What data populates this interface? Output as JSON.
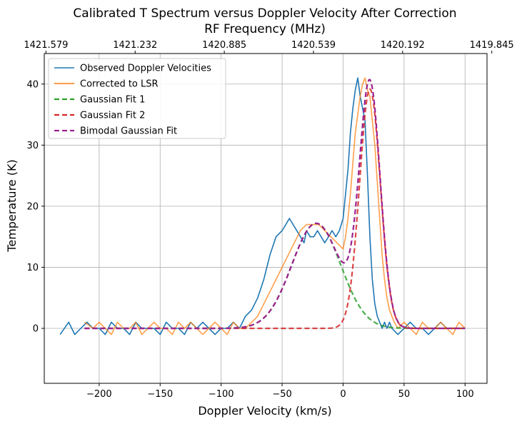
{
  "chart_data": {
    "type": "line",
    "title": "Calibrated T Spectrum versus Doppler Velocity After Correction",
    "xlabel": "Doppler Velocity (km/s)",
    "ylabel": "Temperature (K)",
    "x2label": "RF Frequency (MHz)",
    "xlim": [
      -245,
      118
    ],
    "ylim": [
      -9,
      45
    ],
    "xticks": [
      -200,
      -150,
      -100,
      -50,
      0,
      50,
      100
    ],
    "yticks": [
      0,
      10,
      20,
      30,
      40
    ],
    "x2ticks": [
      {
        "value": -243.6,
        "label": "1421.579"
      },
      {
        "value": -170.5,
        "label": "1421.232"
      },
      {
        "value": -97.4,
        "label": "1420.885"
      },
      {
        "value": -24.3,
        "label": "1420.539"
      },
      {
        "value": 48.8,
        "label": "1420.192"
      },
      {
        "value": 121.9,
        "label": "1419.845"
      }
    ],
    "grid": true,
    "legend": "upper-left",
    "series": [
      {
        "name": "Observed Doppler Velocities",
        "color": "#1f77b4",
        "style": "solid",
        "x": [
          -232,
          -225,
          -220,
          -215,
          -210,
          -205,
          -200,
          -195,
          -190,
          -185,
          -180,
          -175,
          -170,
          -165,
          -160,
          -155,
          -150,
          -145,
          -140,
          -135,
          -130,
          -125,
          -120,
          -115,
          -110,
          -105,
          -100,
          -95,
          -90,
          -85,
          -80,
          -75,
          -70,
          -65,
          -60,
          -55,
          -50,
          -47,
          -44,
          -41,
          -38,
          -35,
          -32,
          -30,
          -27,
          -24,
          -21,
          -18,
          -15,
          -12,
          -9,
          -6,
          -3,
          0,
          2,
          4,
          6,
          8,
          10,
          12,
          14,
          16,
          18,
          20,
          22,
          24,
          26,
          28,
          30,
          32,
          34,
          36,
          38,
          40,
          45,
          50,
          55,
          60,
          65,
          70,
          75,
          80,
          85
        ],
        "y": [
          -1,
          1,
          -1,
          0,
          1,
          0,
          0,
          -1,
          1,
          0,
          0,
          -1,
          1,
          0,
          0,
          0,
          -1,
          1,
          0,
          0,
          -1,
          1,
          0,
          1,
          0,
          -1,
          0,
          0,
          1,
          0,
          2,
          3,
          5,
          8,
          12,
          15,
          16,
          17,
          18,
          17,
          16,
          15,
          14,
          16,
          15,
          15,
          16,
          15,
          14,
          15,
          16,
          15,
          16,
          18,
          22,
          26,
          32,
          36,
          39,
          41,
          38,
          36,
          34,
          25,
          15,
          8,
          4,
          2,
          1,
          0,
          1,
          0,
          1,
          0,
          -1,
          0,
          1,
          0,
          0,
          -1,
          0,
          1,
          0
        ]
      },
      {
        "name": "Corrected to LSR",
        "color": "#ff7f0e",
        "style": "solid",
        "x": [
          -212,
          -205,
          -200,
          -195,
          -190,
          -185,
          -180,
          -175,
          -170,
          -165,
          -160,
          -155,
          -150,
          -145,
          -140,
          -135,
          -130,
          -125,
          -120,
          -115,
          -110,
          -105,
          -100,
          -95,
          -90,
          -85,
          -80,
          -75,
          -70,
          -65,
          -60,
          -55,
          -50,
          -45,
          -40,
          -35,
          -30,
          -25,
          -20,
          -15,
          -10,
          -5,
          0,
          2,
          4,
          6,
          8,
          10,
          12,
          14,
          16,
          18,
          20,
          22,
          24,
          26,
          28,
          30,
          32,
          34,
          36,
          38,
          40,
          42,
          45,
          50,
          55,
          60,
          65,
          70,
          75,
          80,
          85,
          90,
          95,
          100
        ],
        "y": [
          1,
          0,
          1,
          0,
          -1,
          1,
          0,
          0,
          1,
          -1,
          0,
          1,
          0,
          0,
          -1,
          1,
          0,
          1,
          0,
          -1,
          0,
          1,
          0,
          -1,
          1,
          0,
          0,
          1,
          2,
          4,
          6,
          8,
          10,
          12,
          14,
          16,
          17,
          17,
          17,
          16,
          15,
          14,
          13,
          15,
          18,
          22,
          27,
          32,
          35,
          38,
          40,
          41,
          39,
          38,
          34,
          30,
          24,
          18,
          12,
          8,
          5,
          3,
          2,
          1,
          0,
          1,
          0,
          -1,
          1,
          0,
          0,
          1,
          0,
          -1,
          1,
          0
        ]
      },
      {
        "name": "Gaussian Fit 1",
        "color": "#2ca02c",
        "style": "dashed",
        "gaussian": {
          "amp": 17.2,
          "mu": -22,
          "sigma": 20
        }
      },
      {
        "name": "Gaussian Fit 2",
        "color": "#d62728",
        "style": "dashed",
        "gaussian": {
          "amp": 39.2,
          "mu": 22,
          "sigma": 8.5
        }
      },
      {
        "name": "Bimodal Gaussian Fit",
        "color": "#9b2190",
        "style": "dashed",
        "bimodal": [
          {
            "amp": 17.2,
            "mu": -22,
            "sigma": 20
          },
          {
            "amp": 39.2,
            "mu": 22,
            "sigma": 8.5
          }
        ]
      }
    ]
  }
}
